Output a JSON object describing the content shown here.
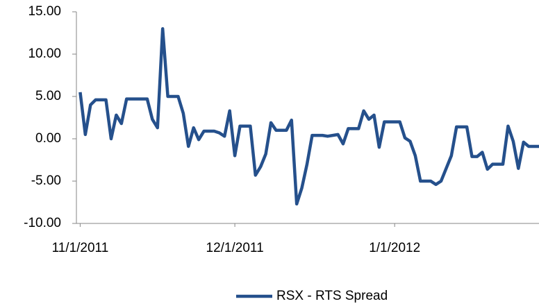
{
  "chart_data": {
    "type": "line",
    "x": [
      "2011-11-01",
      "2011-11-02",
      "2011-11-03",
      "2011-11-04",
      "2011-11-06",
      "2011-11-07",
      "2011-11-08",
      "2011-11-09",
      "2011-11-10",
      "2011-11-12",
      "2011-11-14",
      "2011-11-15",
      "2011-11-16",
      "2011-11-17",
      "2011-11-18",
      "2011-11-20",
      "2011-11-21",
      "2011-11-22",
      "2011-11-23",
      "2011-11-24",
      "2011-11-25",
      "2011-11-27",
      "2011-11-28",
      "2011-11-29",
      "2011-11-30",
      "2011-12-01",
      "2011-12-02",
      "2011-12-04",
      "2011-12-05",
      "2011-12-06",
      "2011-12-07",
      "2011-12-08",
      "2011-12-09",
      "2011-12-11",
      "2011-12-12",
      "2011-12-13",
      "2011-12-14",
      "2011-12-15",
      "2011-12-16",
      "2011-12-18",
      "2011-12-19",
      "2011-12-21",
      "2011-12-22",
      "2011-12-23",
      "2011-12-25",
      "2011-12-26",
      "2011-12-27",
      "2011-12-28",
      "2011-12-29",
      "2011-12-30",
      "2012-01-02",
      "2012-01-03",
      "2012-01-04",
      "2012-01-05",
      "2012-01-06",
      "2012-01-08",
      "2012-01-09",
      "2012-01-10",
      "2012-01-11",
      "2012-01-12",
      "2012-01-13",
      "2012-01-15",
      "2012-01-16",
      "2012-01-17",
      "2012-01-18",
      "2012-01-19",
      "2012-01-20",
      "2012-01-22",
      "2012-01-23",
      "2012-01-24",
      "2012-01-25",
      "2012-01-26",
      "2012-01-27",
      "2012-01-29"
    ],
    "series": [
      {
        "name": "RSX - RTS Spread",
        "color": "#25508c",
        "values": [
          5.5,
          0.5,
          4.0,
          4.6,
          4.6,
          0.0,
          2.8,
          1.8,
          4.7,
          4.7,
          4.7,
          2.3,
          1.3,
          13.0,
          5.0,
          5.0,
          3.0,
          -0.9,
          1.3,
          -0.1,
          0.9,
          0.9,
          0.7,
          0.3,
          3.3,
          -2.0,
          1.5,
          1.5,
          -4.3,
          -3.3,
          -1.8,
          1.9,
          1.0,
          1.0,
          2.2,
          -7.7,
          -5.8,
          -3.0,
          0.4,
          0.4,
          0.3,
          0.5,
          -0.6,
          1.2,
          1.2,
          3.3,
          2.3,
          2.8,
          -1.0,
          2.0,
          2.0,
          0.1,
          -0.3,
          -2.0,
          -5.0,
          -5.0,
          -5.4,
          -5.0,
          -3.5,
          -2.0,
          1.4,
          1.4,
          -2.1,
          -2.1,
          -1.6,
          -3.6,
          -3.0,
          -3.0,
          1.5,
          -0.3,
          -3.5,
          -0.4,
          -0.9,
          -0.9
        ]
      }
    ],
    "xlim": [
      "2011-10-31",
      "2012-01-29"
    ],
    "xticks": [
      {
        "value": "2011-11-01",
        "label": "11/1/2011"
      },
      {
        "value": "2011-12-01",
        "label": "12/1/2011"
      },
      {
        "value": "2012-01-01",
        "label": "1/1/2012"
      }
    ],
    "ylim": [
      -10,
      15
    ],
    "yticks": [
      {
        "value": -10,
        "label": "-10.00"
      },
      {
        "value": -5,
        "label": "-5.00"
      },
      {
        "value": 0,
        "label": "0.00"
      },
      {
        "value": 5,
        "label": "5.00"
      },
      {
        "value": 10,
        "label": "10.00"
      },
      {
        "value": 15,
        "label": "15.00"
      }
    ],
    "grid": false,
    "legend": "bottom"
  }
}
